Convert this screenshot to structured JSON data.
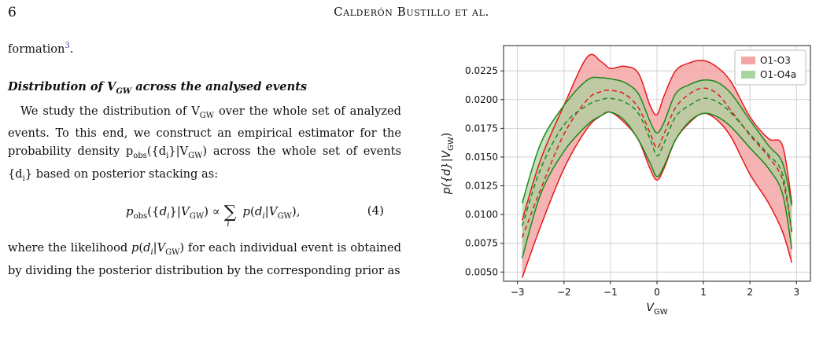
{
  "header": {
    "page_number": "6",
    "running_head": "Calderón Bustillo et al."
  },
  "text": {
    "line_formation": "formation",
    "footnote_ref": "3",
    "line_formation_end": ".",
    "heading": "Distribution of V",
    "heading_sub": "GW",
    "heading_rest": " across the analysed events",
    "para1_a": "We study the distribution of V",
    "para1_sub": "GW",
    "para1_b": " over the whole set of analyzed events. To this end, we construct an empirical estimator for the probability density p",
    "para1_c": "obs",
    "para1_d": "({d",
    "para1_e": "i",
    "para1_f": "}|V",
    "para1_g": "GW",
    "para1_h": ") across the whole set of events {d",
    "para1_i": "i",
    "para1_j": "} based on posterior stacking as:",
    "eq_text": "p_obs({d_i}|V_GW) ∝ Σ_i p(d_i|V_GW),",
    "eq_number": "(4)",
    "para2": "where the likelihood p(d_i|V_GW) for each individual event is obtained by dividing the posterior distribution by the corresponding prior as"
  },
  "chart_data": {
    "type": "area",
    "xlabel": "V",
    "xlabel_sub": "GW",
    "ylabel": "p({d}|V",
    "ylabel_sub": "GW",
    "ylabel_end": ")",
    "xlim": [
      -3.3,
      3.3
    ],
    "ylim": [
      0.0042,
      0.0247
    ],
    "xticks": [
      -3,
      -2,
      -1,
      0,
      1,
      2,
      3
    ],
    "xtick_labels": [
      "−3",
      "−2",
      "−1",
      "0",
      "1",
      "2",
      "3"
    ],
    "yticks": [
      0.005,
      0.0075,
      0.01,
      0.0125,
      0.015,
      0.0175,
      0.02,
      0.0225
    ],
    "ytick_labels": [
      "0.0050",
      "0.0075",
      "0.0100",
      "0.0125",
      "0.0150",
      "0.0175",
      "0.0200",
      "0.0225"
    ],
    "grid": true,
    "legend_position": "top-right",
    "x": [
      -2.9,
      -2.5,
      -2.0,
      -1.5,
      -1.2,
      -1.0,
      -0.7,
      -0.4,
      -0.15,
      0.0,
      0.15,
      0.4,
      0.7,
      1.0,
      1.3,
      1.6,
      2.0,
      2.4,
      2.7,
      2.9
    ],
    "series": [
      {
        "name": "O1-O3",
        "color": "#e41a1c",
        "fill": "#f4a6a6",
        "upper": [
          0.0095,
          0.0148,
          0.0195,
          0.0237,
          0.0233,
          0.0227,
          0.0229,
          0.0223,
          0.0195,
          0.0187,
          0.0203,
          0.0225,
          0.0232,
          0.0234,
          0.0228,
          0.0215,
          0.0185,
          0.0166,
          0.016,
          0.011
        ],
        "median": [
          0.008,
          0.0122,
          0.017,
          0.02,
          0.0207,
          0.0208,
          0.0205,
          0.0193,
          0.0171,
          0.0158,
          0.017,
          0.0193,
          0.0205,
          0.021,
          0.0205,
          0.019,
          0.0169,
          0.015,
          0.013,
          0.0085
        ],
        "lower": [
          0.0045,
          0.009,
          0.014,
          0.0175,
          0.0186,
          0.0189,
          0.018,
          0.0165,
          0.014,
          0.013,
          0.014,
          0.0165,
          0.018,
          0.0188,
          0.0182,
          0.0167,
          0.0135,
          0.011,
          0.0085,
          0.0058
        ]
      },
      {
        "name": "O1-O4a",
        "color": "#1a8a1a",
        "fill": "#a8d4a0",
        "upper": [
          0.011,
          0.0162,
          0.0195,
          0.0217,
          0.0219,
          0.0218,
          0.0215,
          0.0205,
          0.0181,
          0.0171,
          0.018,
          0.0205,
          0.0213,
          0.0217,
          0.0215,
          0.0205,
          0.0182,
          0.016,
          0.0145,
          0.0108
        ],
        "median": [
          0.009,
          0.014,
          0.0178,
          0.0195,
          0.02,
          0.0201,
          0.0198,
          0.0188,
          0.0166,
          0.0151,
          0.0162,
          0.0185,
          0.0195,
          0.0201,
          0.0198,
          0.0188,
          0.017,
          0.0152,
          0.0135,
          0.0085
        ],
        "lower": [
          0.0062,
          0.0118,
          0.0155,
          0.0178,
          0.0186,
          0.0189,
          0.0182,
          0.0165,
          0.0145,
          0.0133,
          0.0142,
          0.0165,
          0.0181,
          0.0188,
          0.0185,
          0.0176,
          0.0158,
          0.014,
          0.0118,
          0.007
        ]
      }
    ]
  }
}
